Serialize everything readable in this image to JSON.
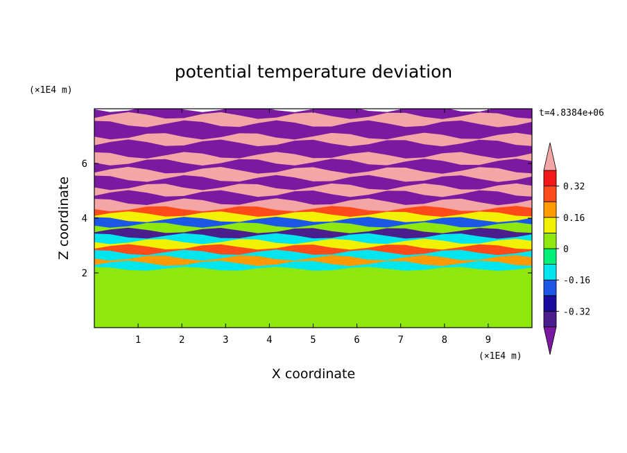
{
  "chart_data": {
    "type": "heatmap",
    "title": "potential temperature deviation",
    "xlabel": "X coordinate",
    "ylabel": "Z coordinate",
    "x_unit": "(×1E4 m)",
    "y_unit": "(×1E4 m)",
    "time_label": "t=4.8384e+06",
    "xlim": [
      0,
      10
    ],
    "ylim": [
      0,
      8
    ],
    "x_ticks": [
      1,
      2,
      3,
      4,
      5,
      6,
      7,
      8,
      9
    ],
    "y_ticks": [
      2,
      4,
      6
    ],
    "grid": false,
    "colorbar": {
      "placement": "right",
      "levels": [
        -0.4,
        -0.32,
        -0.24,
        -0.16,
        -0.08,
        0,
        0.08,
        0.16,
        0.24,
        0.32,
        0.4
      ],
      "labels": [
        "-0.32",
        "-0.16",
        "0",
        "0.16",
        "0.32"
      ],
      "label_values": [
        -0.32,
        -0.16,
        0,
        0.16,
        0.32
      ],
      "colors": [
        "#4a1e8c",
        "#1a0a9e",
        "#1c58e6",
        "#00e5ee",
        "#00f07a",
        "#8ee810",
        "#f2f200",
        "#ff9a00",
        "#ff4a1a",
        "#f01818"
      ],
      "under_color": "#7a1aa0",
      "over_color": "#f4a6a6"
    },
    "bands": [
      {
        "z": [
          7.75,
          8.0
        ],
        "value": -0.45
      },
      {
        "z": [
          7.45,
          7.75
        ],
        "value": 0.45
      },
      {
        "z": [
          7.0,
          7.45
        ],
        "value": -0.45
      },
      {
        "z": [
          6.75,
          7.0
        ],
        "value": 0.45
      },
      {
        "z": [
          6.3,
          6.75
        ],
        "value": -0.45
      },
      {
        "z": [
          6.05,
          6.3
        ],
        "value": 0.45
      },
      {
        "z": [
          5.75,
          6.05
        ],
        "value": -0.45
      },
      {
        "z": [
          5.45,
          5.75
        ],
        "value": 0.45
      },
      {
        "z": [
          5.15,
          5.45
        ],
        "value": -0.45
      },
      {
        "z": [
          4.9,
          5.15
        ],
        "value": 0.45
      },
      {
        "z": [
          4.6,
          4.9
        ],
        "value": -0.45
      },
      {
        "z": [
          4.35,
          4.6
        ],
        "value": 0.45
      },
      {
        "z": [
          4.15,
          4.35
        ],
        "value": 0.28
      },
      {
        "z": [
          3.95,
          4.15
        ],
        "value": 0.1
      },
      {
        "z": [
          3.75,
          3.95
        ],
        "value": -0.2
      },
      {
        "z": [
          3.55,
          3.75
        ],
        "value": 0.05
      },
      {
        "z": [
          3.35,
          3.55
        ],
        "value": -0.35
      },
      {
        "z": [
          3.15,
          3.35
        ],
        "value": -0.12
      },
      {
        "z": [
          2.95,
          3.15
        ],
        "value": 0.1
      },
      {
        "z": [
          2.75,
          2.95
        ],
        "value": 0.3
      },
      {
        "z": [
          2.55,
          2.75
        ],
        "value": -0.12
      },
      {
        "z": [
          2.35,
          2.55
        ],
        "value": 0.2
      },
      {
        "z": [
          2.15,
          2.35
        ],
        "value": -0.12
      },
      {
        "z": [
          2.0,
          2.15
        ],
        "value": 0.05
      },
      {
        "z": [
          0.0,
          2.0
        ],
        "value": 0.04
      }
    ]
  }
}
